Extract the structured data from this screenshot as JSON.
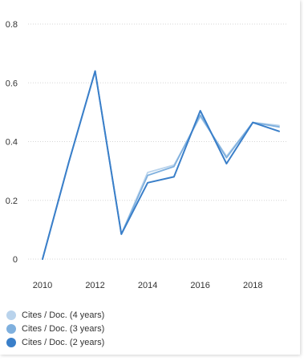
{
  "chart_data": {
    "type": "line",
    "title": "",
    "xlabel": "",
    "ylabel": "",
    "x": [
      2010,
      2011,
      2012,
      2013,
      2014,
      2015,
      2016,
      2017,
      2018,
      2019
    ],
    "xticks": [
      "2010",
      "2012",
      "2014",
      "2016",
      "2018"
    ],
    "yticks": [
      "0",
      "0.2",
      "0.4",
      "0.6",
      "0.8"
    ],
    "xlim": [
      2010,
      2019
    ],
    "ylim": [
      0,
      0.8
    ],
    "grid": true,
    "legend_position": "bottom-left",
    "series": [
      {
        "name": "Cites / Doc. (4 years)",
        "color": "#b9d3ec",
        "values": [
          0,
          0.33,
          0.64,
          0.085,
          0.295,
          0.32,
          0.485,
          0.35,
          0.465,
          0.455
        ]
      },
      {
        "name": "Cites / Doc. (3 years)",
        "color": "#7fb0de",
        "values": [
          0,
          0.33,
          0.64,
          0.085,
          0.285,
          0.315,
          0.49,
          0.345,
          0.465,
          0.45
        ]
      },
      {
        "name": "Cites / Doc. (2 years)",
        "color": "#3a7fc9",
        "values": [
          0,
          0.33,
          0.64,
          0.085,
          0.26,
          0.28,
          0.505,
          0.325,
          0.465,
          0.435
        ]
      }
    ]
  }
}
